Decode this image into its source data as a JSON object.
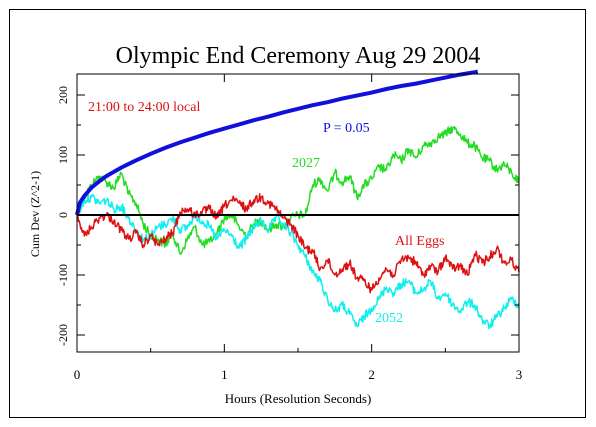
{
  "chart_data": {
    "type": "line",
    "title": "Olympic End Ceremony Aug 29 2004",
    "xlabel": "Hours (Resolution Seconds)",
    "ylabel": "Cum Dev (Z^2-1)",
    "xlim": [
      0,
      3
    ],
    "ylim": [
      -230,
      235
    ],
    "x_ticks": [
      0,
      1,
      2,
      3
    ],
    "y_ticks": [
      -200,
      -100,
      0,
      100,
      200
    ],
    "grid": false,
    "annotations": [
      "21:00 to 24:00 local"
    ],
    "series": [
      {
        "name": "P = 0.05",
        "color": "#1010dd",
        "x": [
          0,
          0.02,
          0.05,
          0.1,
          0.15,
          0.2,
          0.3,
          0.4,
          0.5,
          0.6,
          0.7,
          0.8,
          0.9,
          1.0,
          1.1,
          1.2,
          1.3,
          1.4,
          1.5,
          1.6,
          1.7,
          1.8,
          1.9,
          2.0,
          2.1,
          2.2,
          2.3,
          2.4,
          2.5,
          2.6,
          2.7,
          2.72
        ],
        "y": [
          0,
          20.5,
          32,
          46,
          56,
          65,
          79,
          91,
          102,
          112,
          121,
          129,
          137,
          144,
          151,
          158,
          164,
          171,
          177,
          183,
          188,
          194,
          199,
          204,
          210,
          215,
          219,
          224,
          229,
          234,
          238,
          239
        ]
      },
      {
        "name": "2027",
        "color": "#22dd22",
        "x": [
          0,
          0.05,
          0.1,
          0.15,
          0.2,
          0.25,
          0.3,
          0.35,
          0.4,
          0.45,
          0.5,
          0.55,
          0.6,
          0.65,
          0.7,
          0.75,
          0.8,
          0.85,
          0.9,
          0.95,
          1.0,
          1.05,
          1.1,
          1.15,
          1.2,
          1.25,
          1.3,
          1.35,
          1.4,
          1.45,
          1.5,
          1.55,
          1.6,
          1.65,
          1.7,
          1.75,
          1.8,
          1.85,
          1.9,
          1.95,
          2.0,
          2.05,
          2.1,
          2.15,
          2.2,
          2.25,
          2.3,
          2.35,
          2.4,
          2.45,
          2.5,
          2.55,
          2.6,
          2.65,
          2.7,
          2.75,
          2.8,
          2.85,
          2.9,
          2.95,
          3.0
        ],
        "y": [
          0,
          30,
          50,
          65,
          55,
          45,
          70,
          35,
          20,
          -15,
          -35,
          -40,
          -50,
          -30,
          -65,
          -40,
          -20,
          -50,
          -45,
          -30,
          -5,
          0,
          -20,
          -35,
          -15,
          -10,
          -25,
          -15,
          -20,
          -5,
          0,
          0,
          50,
          60,
          40,
          70,
          55,
          65,
          30,
          50,
          60,
          80,
          75,
          100,
          90,
          110,
          95,
          115,
          120,
          130,
          135,
          145,
          135,
          120,
          115,
          95,
          90,
          75,
          85,
          70,
          55
        ]
      },
      {
        "name": "2052",
        "color": "#11eeee",
        "x": [
          0,
          0.05,
          0.1,
          0.15,
          0.2,
          0.25,
          0.3,
          0.35,
          0.4,
          0.45,
          0.5,
          0.55,
          0.6,
          0.65,
          0.7,
          0.75,
          0.8,
          0.85,
          0.9,
          0.95,
          1.0,
          1.05,
          1.1,
          1.15,
          1.2,
          1.25,
          1.3,
          1.35,
          1.4,
          1.45,
          1.5,
          1.55,
          1.6,
          1.65,
          1.7,
          1.75,
          1.8,
          1.85,
          1.9,
          1.95,
          2.0,
          2.05,
          2.1,
          2.15,
          2.2,
          2.25,
          2.3,
          2.35,
          2.4,
          2.45,
          2.5,
          2.55,
          2.6,
          2.65,
          2.7,
          2.75,
          2.8,
          2.85,
          2.9,
          2.95,
          3.0
        ],
        "y": [
          0,
          25,
          30,
          20,
          25,
          10,
          15,
          -5,
          -25,
          -40,
          -35,
          -20,
          -15,
          -5,
          -25,
          -20,
          0,
          -10,
          -20,
          -40,
          -25,
          -35,
          -55,
          -40,
          -20,
          -10,
          -25,
          -5,
          -15,
          -30,
          -50,
          -70,
          -95,
          -110,
          -140,
          -160,
          -150,
          -165,
          -185,
          -170,
          -155,
          -140,
          -120,
          -130,
          -115,
          -110,
          -130,
          -125,
          -110,
          -140,
          -130,
          -150,
          -160,
          -145,
          -150,
          -175,
          -185,
          -170,
          -155,
          -140,
          -150
        ]
      },
      {
        "name": "All Eggs",
        "color": "#dd1111",
        "x": [
          0,
          0.05,
          0.1,
          0.15,
          0.2,
          0.25,
          0.3,
          0.35,
          0.4,
          0.45,
          0.5,
          0.55,
          0.6,
          0.65,
          0.7,
          0.75,
          0.8,
          0.85,
          0.9,
          0.95,
          1.0,
          1.05,
          1.1,
          1.15,
          1.2,
          1.25,
          1.3,
          1.35,
          1.4,
          1.45,
          1.5,
          1.55,
          1.6,
          1.65,
          1.7,
          1.75,
          1.8,
          1.85,
          1.9,
          1.95,
          2.0,
          2.05,
          2.1,
          2.15,
          2.2,
          2.25,
          2.3,
          2.35,
          2.4,
          2.45,
          2.5,
          2.55,
          2.6,
          2.65,
          2.7,
          2.75,
          2.8,
          2.85,
          2.9,
          2.95,
          3.0
        ],
        "y": [
          0,
          -35,
          -20,
          -5,
          0,
          -10,
          -25,
          -40,
          -30,
          -50,
          -35,
          -50,
          -40,
          -30,
          5,
          10,
          0,
          5,
          10,
          -5,
          15,
          25,
          20,
          10,
          25,
          30,
          20,
          10,
          -5,
          -15,
          -35,
          -55,
          -60,
          -90,
          -75,
          -100,
          -90,
          -80,
          -105,
          -110,
          -125,
          -105,
          -90,
          -100,
          -75,
          -70,
          -80,
          -100,
          -85,
          -95,
          -70,
          -90,
          -85,
          -100,
          -65,
          -80,
          -70,
          -55,
          -80,
          -75,
          -95
        ]
      }
    ]
  }
}
